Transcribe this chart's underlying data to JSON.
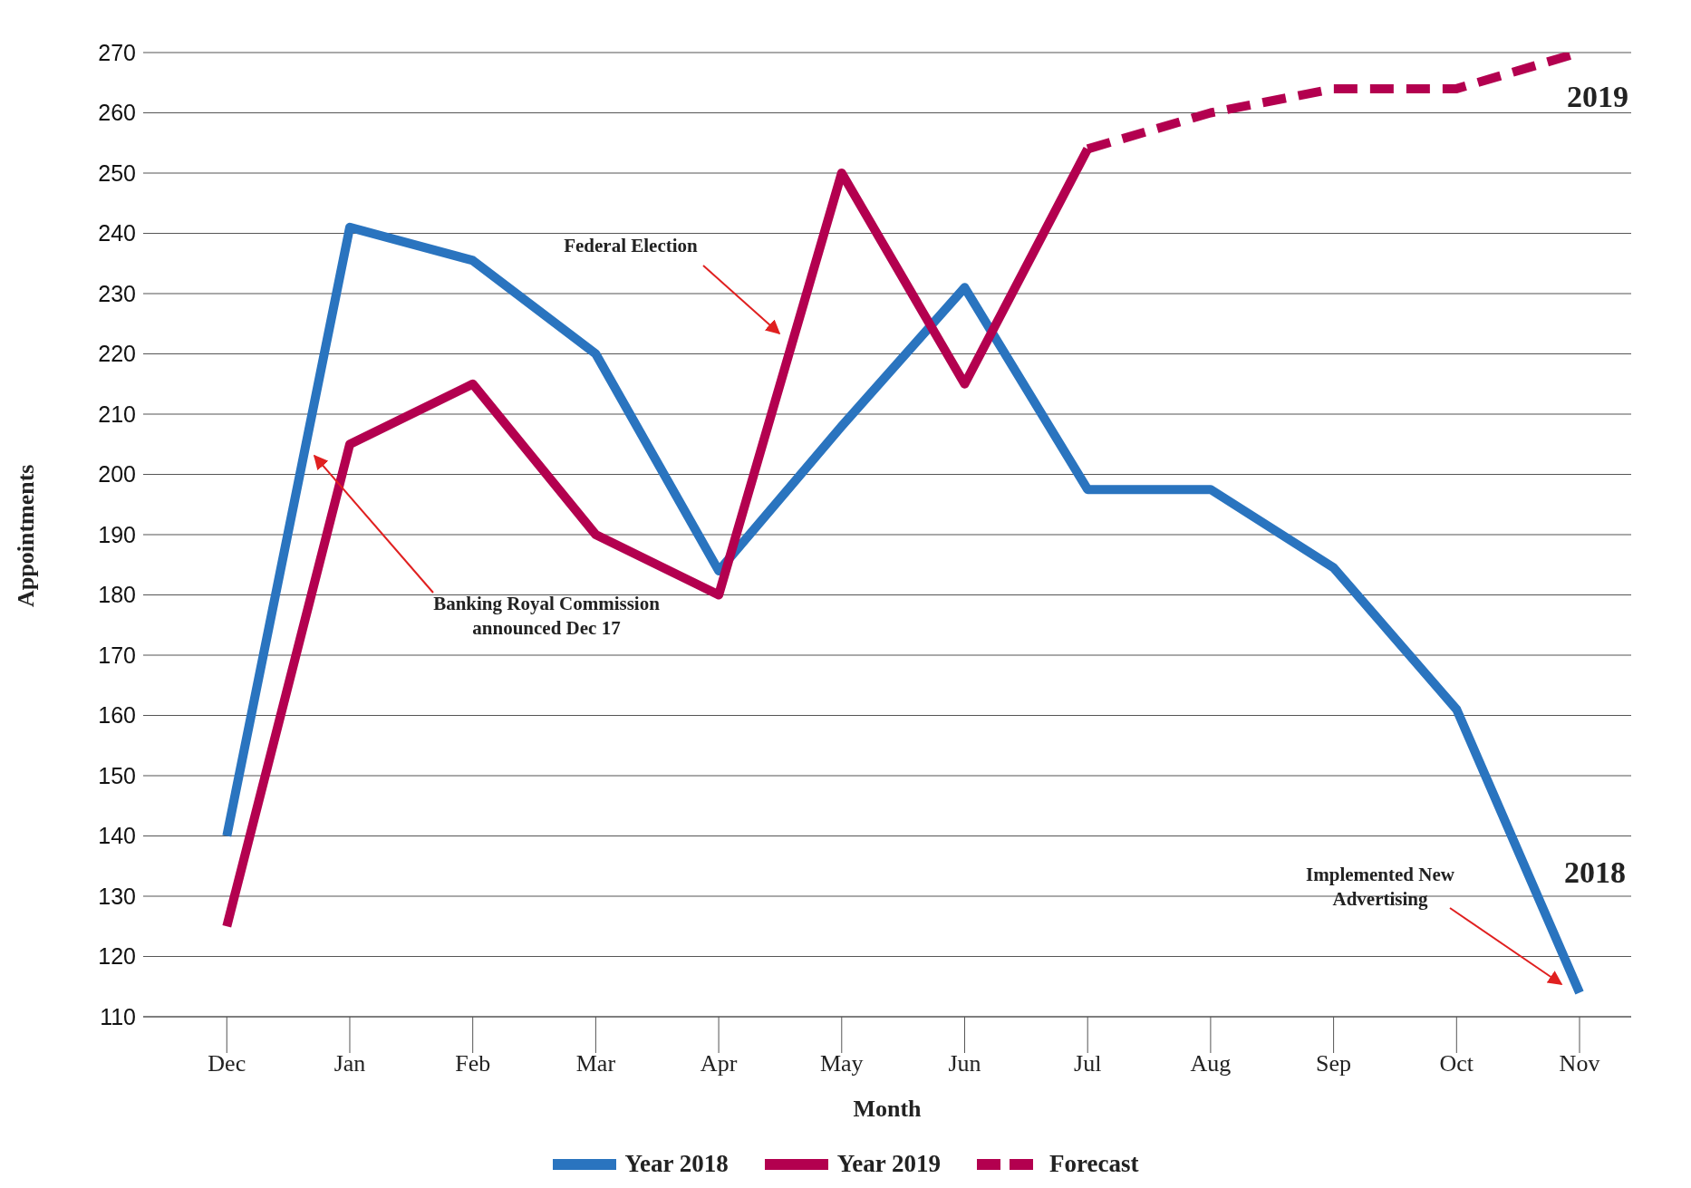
{
  "chart_data": {
    "type": "line",
    "xlabel": "Month",
    "ylabel": "Appointments",
    "categories": [
      "Dec",
      "Jan",
      "Feb",
      "Mar",
      "Apr",
      "May",
      "Jun",
      "Jul",
      "Aug",
      "Sep",
      "Oct",
      "Nov"
    ],
    "series": [
      {
        "name": "Year 2018",
        "color": "#2a74bf",
        "values": [
          140,
          241,
          235.5,
          220,
          184,
          208,
          231,
          197.5,
          197.5,
          184.5,
          161,
          114
        ]
      },
      {
        "name": "Year 2019",
        "color": "#b3004f",
        "values": [
          125,
          205,
          215,
          190,
          180,
          250,
          215,
          254,
          null,
          null,
          null,
          null
        ]
      },
      {
        "name": "Forecast",
        "color": "#b3004f",
        "line_style": "dashed",
        "values": [
          null,
          null,
          null,
          null,
          null,
          null,
          null,
          254,
          260,
          264,
          264,
          270
        ]
      }
    ],
    "ylim": [
      110,
      270
    ],
    "yticks": [
      110,
      120,
      130,
      140,
      150,
      160,
      170,
      180,
      190,
      200,
      210,
      220,
      230,
      240,
      250,
      260,
      270
    ],
    "grid": "y",
    "legend": "bottom",
    "line_style": "solid",
    "marker": "none",
    "annotations": [
      "Federal Election",
      "Banking Royal Commission\nannounced Dec 17",
      "Implemented New\nAdvertising",
      "2019",
      "2018"
    ]
  }
}
